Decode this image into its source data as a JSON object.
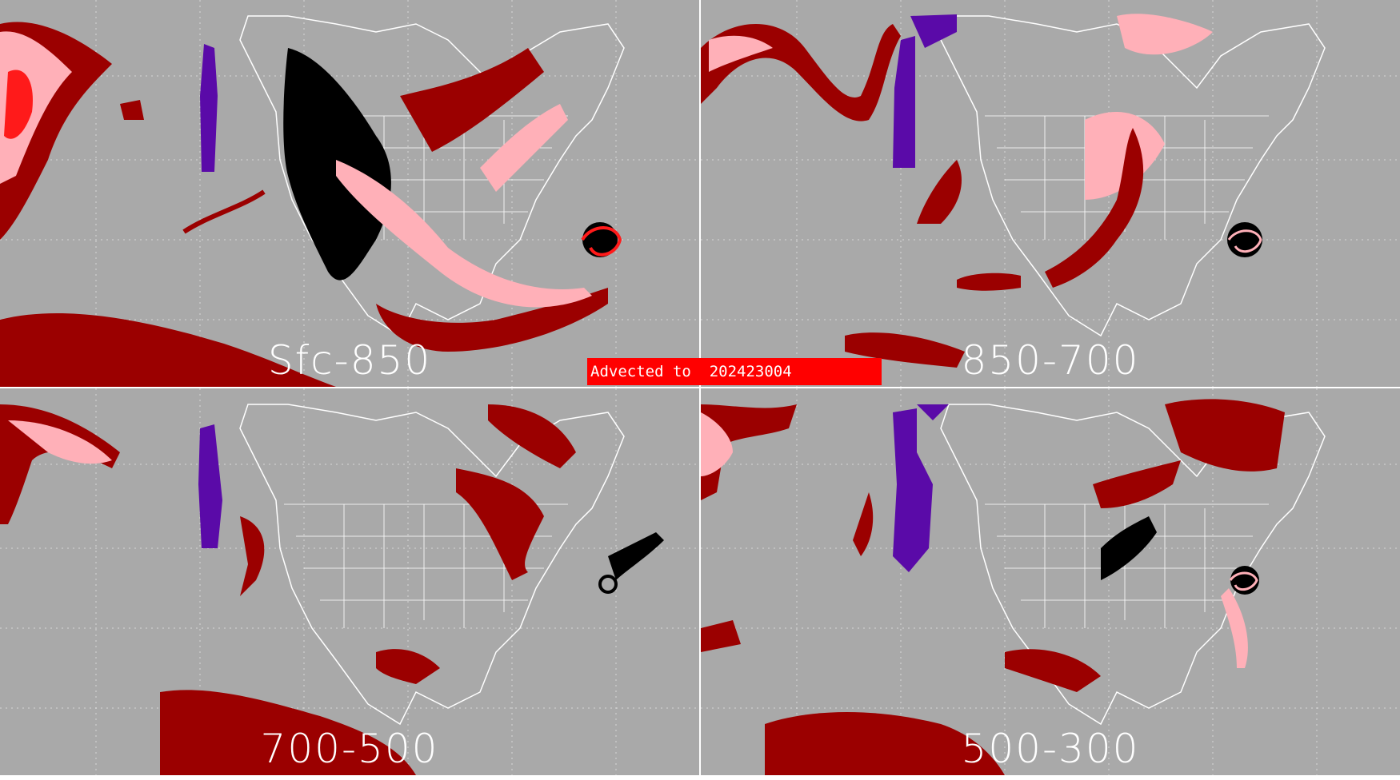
{
  "panels": [
    {
      "label": "Sfc-850"
    },
    {
      "label": "850-700"
    },
    {
      "label": "700-500"
    },
    {
      "label": "500-300"
    }
  ],
  "banner": "Advected to  202423004",
  "colors": {
    "ocean": "#a9a9a9",
    "coast": "#ffffff",
    "grid": "#d9d9d9",
    "dark_red": "#9b0000",
    "pink": "#ffb0b8",
    "bright_red": "#ff1a1a",
    "purple": "#5a0aa8",
    "black": "#000000",
    "banner": "#ff0000"
  }
}
